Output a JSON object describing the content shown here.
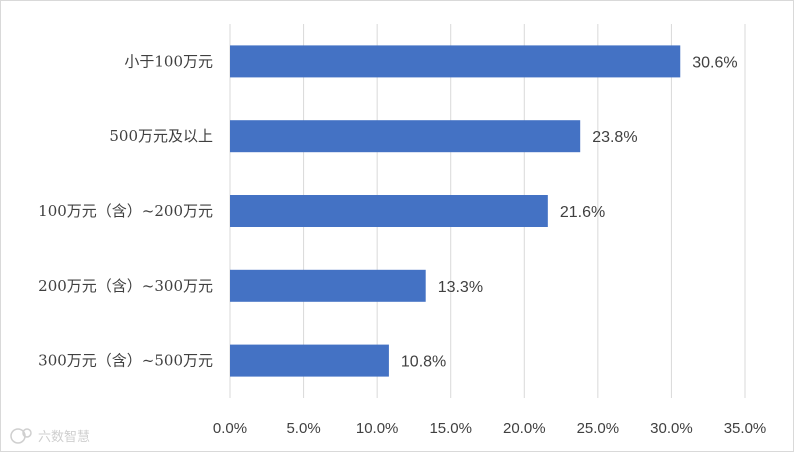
{
  "chart_data": {
    "type": "bar",
    "orientation": "horizontal",
    "categories": [
      "小于100万元",
      "500万元及以上",
      "100万元（含）~200万元",
      "200万元（含）~300万元",
      "300万元（含）~500万元"
    ],
    "values": [
      30.6,
      23.8,
      21.6,
      13.3,
      10.8
    ],
    "data_labels": [
      "30.6%",
      "23.8%",
      "21.6%",
      "13.3%",
      "10.8%"
    ],
    "xlim": [
      0,
      35
    ],
    "x_ticks": [
      "0.0%",
      "5.0%",
      "10.0%",
      "15.0%",
      "20.0%",
      "25.0%",
      "30.0%",
      "35.0%"
    ],
    "grid": "vertical",
    "title": "",
    "xlabel": "",
    "ylabel": ""
  },
  "colors": {
    "bar": "#4472c4",
    "grid": "#d9d9d9",
    "text": "#404040"
  },
  "watermark": {
    "text": "六数智慧"
  }
}
